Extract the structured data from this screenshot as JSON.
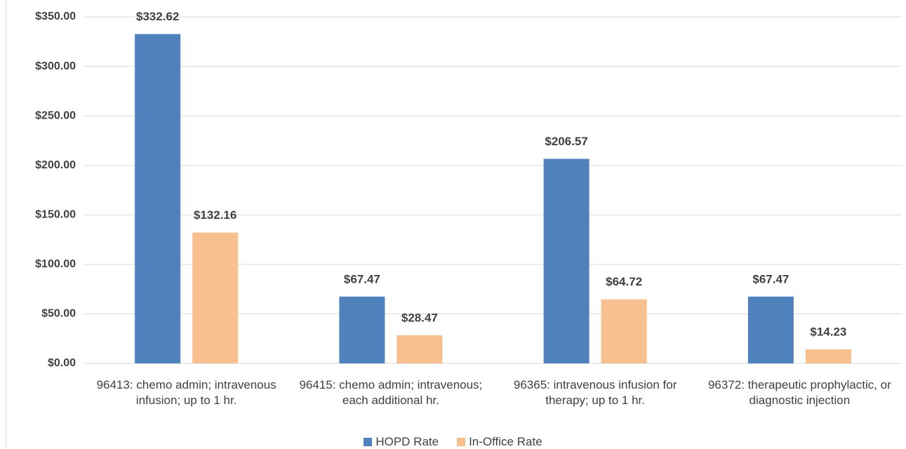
{
  "chart_data": {
    "type": "bar",
    "categories": [
      "96413: chemo admin; intravenous infusion; up to 1 hr.",
      "96415: chemo admin; intravenous; each additional hr.",
      "96365: intravenous infusion for therapy; up to 1 hr.",
      "96372: therapeutic prophylactic, or diagnostic injection"
    ],
    "series": [
      {
        "name": "HOPD Rate",
        "color": "#4f81bd",
        "values": [
          332.62,
          67.47,
          206.57,
          67.47
        ],
        "value_labels": [
          "$332.62",
          "$67.47",
          "$206.57",
          "$67.47"
        ]
      },
      {
        "name": "In-Office Rate",
        "color": "#f9c08f",
        "values": [
          132.16,
          28.47,
          64.72,
          14.23
        ],
        "value_labels": [
          "$132.16",
          "$28.47",
          "$64.72",
          "$14.23"
        ]
      }
    ],
    "ylim": [
      0,
      350
    ],
    "yticks": [
      {
        "value": 0,
        "label": "$0.00"
      },
      {
        "value": 50,
        "label": "$50.00"
      },
      {
        "value": 100,
        "label": "$100.00"
      },
      {
        "value": 150,
        "label": "$150.00"
      },
      {
        "value": 200,
        "label": "$200.00"
      },
      {
        "value": 250,
        "label": "$250.00"
      },
      {
        "value": 300,
        "label": "$300.00"
      },
      {
        "value": 350,
        "label": "$350.00"
      }
    ],
    "grid": true,
    "legend": "bottom"
  }
}
